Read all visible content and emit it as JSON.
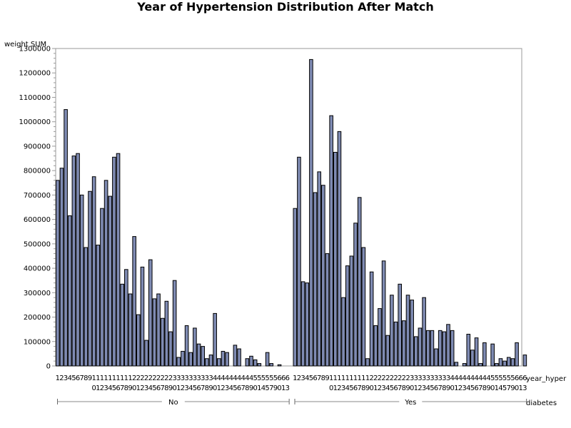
{
  "chart_data": {
    "type": "bar",
    "title": "Year of Hypertension Distribution After Match",
    "ylabel": "weight SUM",
    "xlabel": "year_hyper",
    "group_axis_label": "diabetes",
    "ylim": [
      0,
      1300000
    ],
    "yticks": [
      0,
      100000,
      200000,
      300000,
      400000,
      500000,
      600000,
      700000,
      800000,
      900000,
      1000000,
      1100000,
      1200000,
      1300000
    ],
    "grid": false,
    "bar_color": "#7f8bb3",
    "groups": [
      {
        "label": "No",
        "categories": [
          "1",
          "2",
          "3",
          "4",
          "5",
          "6",
          "7",
          "8",
          "9",
          "10",
          "11",
          "12",
          "13",
          "14",
          "15",
          "16",
          "17",
          "18",
          "19",
          "20",
          "21",
          "22",
          "23",
          "24",
          "25",
          "26",
          "27",
          "28",
          "29",
          "30",
          "31",
          "32",
          "33",
          "34",
          "35",
          "36",
          "37",
          "38",
          "39",
          "40",
          "41",
          "42",
          "43",
          "44",
          "45",
          "46",
          "47",
          "48",
          "49",
          "50",
          "51",
          "54",
          "55",
          "57",
          "59",
          "60",
          "61",
          "63"
        ],
        "values": [
          760000,
          810000,
          1050000,
          615000,
          860000,
          870000,
          700000,
          485000,
          715000,
          775000,
          495000,
          645000,
          760000,
          695000,
          855000,
          870000,
          335000,
          395000,
          295000,
          530000,
          210000,
          405000,
          105000,
          435000,
          275000,
          295000,
          195000,
          265000,
          140000,
          350000,
          35000,
          60000,
          165000,
          55000,
          155000,
          90000,
          80000,
          30000,
          45000,
          215000,
          30000,
          60000,
          55000,
          0,
          85000,
          70000,
          0,
          30000,
          40000,
          25000,
          10000,
          0,
          55000,
          10000,
          0,
          5000,
          0,
          0
        ]
      },
      {
        "label": "Yes",
        "categories": [
          "1",
          "2",
          "3",
          "4",
          "5",
          "6",
          "7",
          "8",
          "9",
          "10",
          "11",
          "12",
          "13",
          "14",
          "15",
          "16",
          "17",
          "18",
          "19",
          "20",
          "21",
          "22",
          "23",
          "24",
          "25",
          "26",
          "27",
          "28",
          "29",
          "30",
          "31",
          "32",
          "33",
          "34",
          "35",
          "36",
          "37",
          "38",
          "39",
          "40",
          "41",
          "42",
          "43",
          "44",
          "45",
          "46",
          "47",
          "48",
          "49",
          "50",
          "51",
          "54",
          "55",
          "57",
          "59",
          "60",
          "61",
          "63"
        ],
        "values": [
          645000,
          855000,
          345000,
          340000,
          1255000,
          710000,
          795000,
          740000,
          460000,
          1025000,
          875000,
          960000,
          280000,
          410000,
          450000,
          585000,
          690000,
          485000,
          30000,
          385000,
          165000,
          235000,
          430000,
          125000,
          290000,
          180000,
          335000,
          185000,
          290000,
          270000,
          120000,
          155000,
          280000,
          145000,
          145000,
          70000,
          145000,
          140000,
          170000,
          145000,
          15000,
          0,
          10000,
          130000,
          65000,
          115000,
          10000,
          95000,
          0,
          90000,
          10000,
          30000,
          20000,
          35000,
          30000,
          95000,
          0,
          45000
        ]
      }
    ]
  }
}
